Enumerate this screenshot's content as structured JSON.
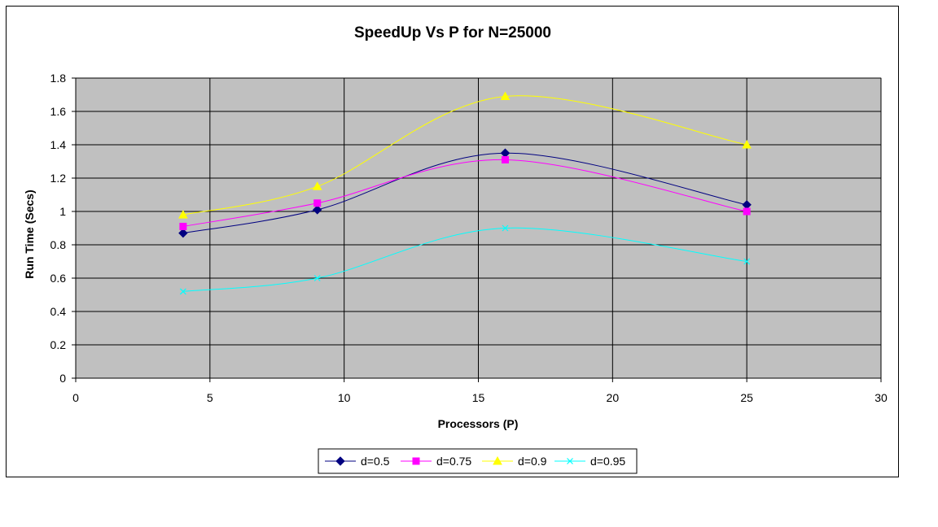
{
  "chart_data": {
    "type": "line",
    "title": "SpeedUp Vs P for N=25000",
    "xlabel": "Processors (P)",
    "ylabel": "Run Time (Secs)",
    "xlim": [
      0,
      30
    ],
    "ylim": [
      0,
      1.8
    ],
    "xticks": [
      0,
      5,
      10,
      15,
      20,
      25,
      30
    ],
    "yticks": [
      0,
      0.2,
      0.4,
      0.6,
      0.8,
      1,
      1.2,
      1.4,
      1.6,
      1.8
    ],
    "grid": true,
    "legend_position": "bottom",
    "plot_background": "#c0c0c0",
    "x": [
      4,
      9,
      16,
      25
    ],
    "series": [
      {
        "name": "d=0.5",
        "values": [
          0.87,
          1.01,
          1.35,
          1.04
        ],
        "color": "#000080",
        "marker": "diamond"
      },
      {
        "name": "d=0.75",
        "values": [
          0.91,
          1.05,
          1.31,
          1.0
        ],
        "color": "#ff00ff",
        "marker": "square"
      },
      {
        "name": "d=0.9",
        "values": [
          0.98,
          1.15,
          1.69,
          1.4
        ],
        "color": "#ffff00",
        "marker": "triangle"
      },
      {
        "name": "d=0.95",
        "values": [
          0.52,
          0.6,
          0.9,
          0.7
        ],
        "color": "#00ffff",
        "marker": "x"
      }
    ]
  }
}
